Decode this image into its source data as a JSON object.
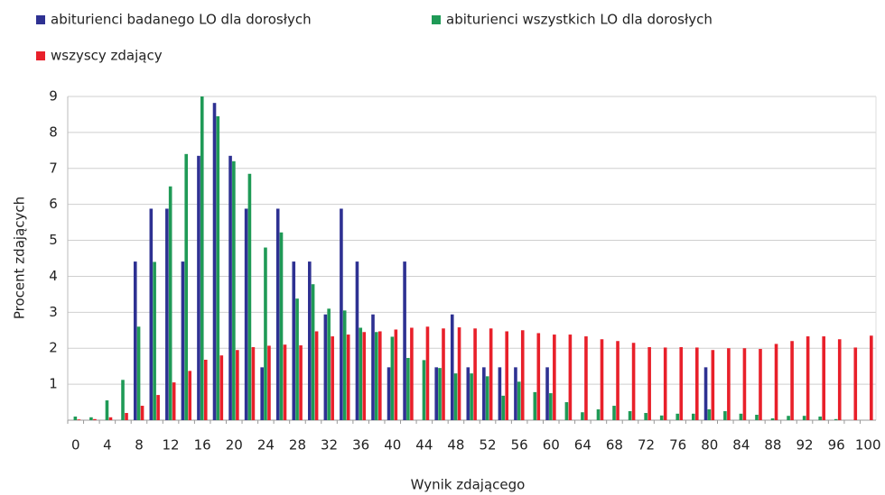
{
  "chart_data": {
    "type": "bar",
    "x_label": "Wynik zdającego",
    "y_label": "Procent zdających",
    "categories": [
      "0",
      null,
      "4",
      null,
      "8",
      null,
      "12",
      null,
      "16",
      null,
      "20",
      null,
      "24",
      null,
      "28",
      null,
      "32",
      null,
      "36",
      null,
      "40",
      null,
      "44",
      null,
      "48",
      null,
      "52",
      null,
      "56",
      null,
      "60",
      null,
      "64",
      null,
      "68",
      null,
      "72",
      null,
      "76",
      null,
      "80",
      null,
      "84",
      null,
      "88",
      null,
      "92",
      null,
      "96",
      null,
      "100"
    ],
    "series": [
      {
        "name": "abiturienci badanego LO dla dorosłych",
        "color": "#2e3192",
        "values": [
          0,
          0,
          0,
          0,
          4.41,
          5.88,
          5.88,
          4.41,
          7.35,
          8.82,
          7.35,
          5.88,
          1.47,
          5.88,
          4.41,
          4.41,
          2.94,
          5.88,
          4.41,
          2.94,
          1.47,
          4.41,
          0,
          1.47,
          2.94,
          1.47,
          1.47,
          1.47,
          1.47,
          0,
          1.47,
          0,
          0,
          0,
          0,
          0,
          0,
          0,
          0,
          0,
          1.47,
          0,
          0,
          0,
          0,
          0,
          0,
          0,
          0,
          0,
          0
        ]
      },
      {
        "name": "abiturienci wszystkich LO dla dorosłych",
        "color": "#1f9a56",
        "values": [
          0.1,
          0.08,
          0.55,
          1.12,
          2.6,
          4.4,
          6.5,
          7.4,
          9.0,
          8.45,
          7.2,
          6.85,
          4.8,
          5.22,
          3.38,
          3.78,
          3.1,
          3.05,
          2.57,
          2.45,
          2.32,
          1.73,
          1.67,
          1.45,
          1.3,
          1.3,
          1.22,
          0.68,
          1.07,
          0.78,
          0.75,
          0.5,
          0.22,
          0.3,
          0.4,
          0.25,
          0.2,
          0.13,
          0.18,
          0.18,
          0.3,
          0.25,
          0.18,
          0.15,
          0.05,
          0.12,
          0.12,
          0.1,
          0.03,
          0,
          0
        ]
      },
      {
        "name": "wszyscy zdający",
        "color": "#e8202a",
        "values": [
          0.02,
          0.03,
          0.08,
          0.2,
          0.4,
          0.7,
          1.05,
          1.37,
          1.68,
          1.8,
          1.95,
          2.03,
          2.07,
          2.1,
          2.08,
          2.47,
          2.33,
          2.38,
          2.45,
          2.47,
          2.52,
          2.57,
          2.6,
          2.55,
          2.58,
          2.55,
          2.55,
          2.47,
          2.5,
          2.42,
          2.38,
          2.38,
          2.33,
          2.25,
          2.2,
          2.15,
          2.03,
          2.02,
          2.03,
          2.02,
          1.95,
          2.0,
          2.0,
          1.98,
          2.12,
          2.2,
          2.33,
          2.33,
          2.25,
          2.02,
          2.35
        ]
      }
    ],
    "ylim": [
      0,
      9
    ],
    "yticks": [
      1,
      2,
      3,
      4,
      5,
      6,
      7,
      8,
      9
    ],
    "grid": true
  }
}
